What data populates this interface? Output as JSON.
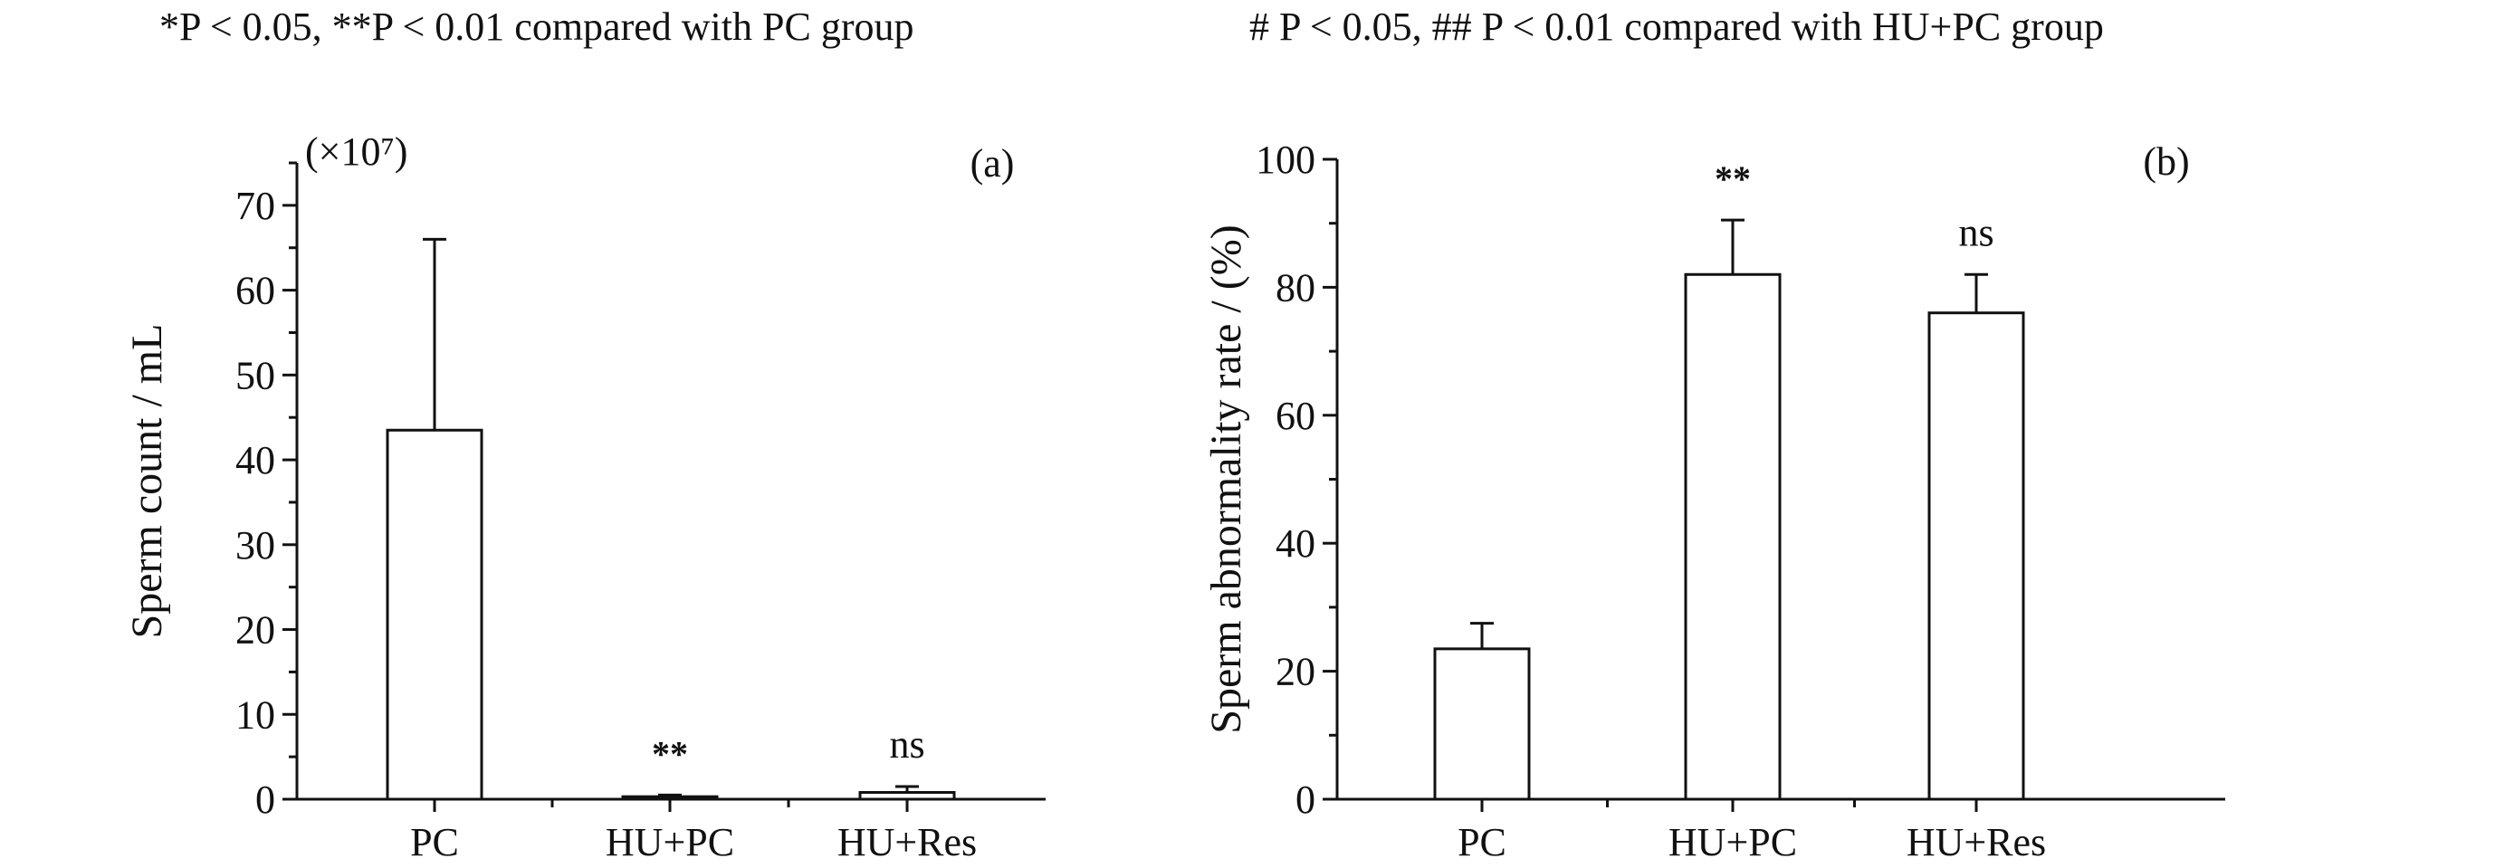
{
  "notes": {
    "left": "*P < 0.05, **P < 0.01 compared with PC group",
    "right": "# P < 0.05, ## P < 0.01 compared with HU+PC group"
  },
  "chart_data": [
    {
      "type": "bar",
      "panel_label": "(a)",
      "ylabel": "Sperm count / mL",
      "y_multiplier": "(×10⁷)",
      "categories": [
        "PC",
        "HU+PC",
        "HU+Res"
      ],
      "values": [
        43.5,
        0.3,
        0.8
      ],
      "errors": [
        22.5,
        0.2,
        0.7
      ],
      "annotations": [
        "",
        "**",
        "ns"
      ],
      "ylim": [
        0,
        75
      ],
      "yticks": [
        0,
        10,
        20,
        30,
        40,
        50,
        60,
        70
      ],
      "grid": false
    },
    {
      "type": "bar",
      "panel_label": "(b)",
      "ylabel": "Sperm abnormality rate / (%)",
      "categories": [
        "PC",
        "HU+PC",
        "HU+Res"
      ],
      "values": [
        23.5,
        82,
        76
      ],
      "errors": [
        4,
        8.5,
        6
      ],
      "annotations": [
        "",
        "**",
        "ns"
      ],
      "ylim": [
        0,
        100
      ],
      "yticks": [
        0,
        20,
        40,
        60,
        80,
        100
      ],
      "grid": false
    }
  ]
}
